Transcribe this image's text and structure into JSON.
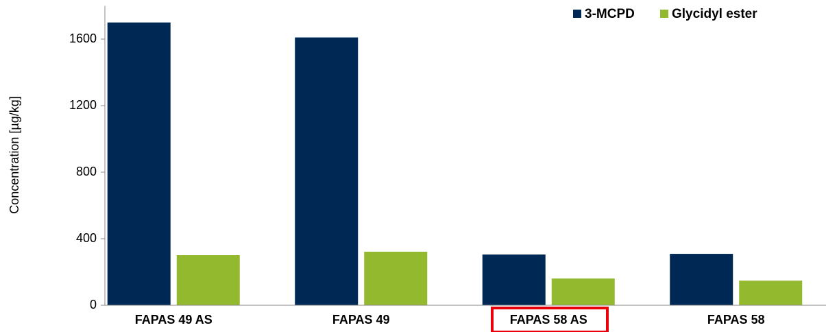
{
  "chart_data": {
    "type": "bar",
    "y_label": "Concentration [µg/kg]",
    "categories": [
      "FAPAS 49 AS",
      "FAPAS 49",
      "FAPAS 58 AS",
      "FAPAS 58"
    ],
    "series": [
      {
        "name": "3-MCPD",
        "color": "#002855",
        "values": [
          1700,
          1610,
          305,
          309
        ]
      },
      {
        "name": "Glycidyl ester",
        "color": "#93b92f",
        "values": [
          301,
          322,
          161,
          148
        ]
      }
    ],
    "ylim": [
      0,
      1800
    ],
    "yticks": [
      0,
      400,
      800,
      1200,
      1600
    ],
    "legend": "top-right"
  }
}
